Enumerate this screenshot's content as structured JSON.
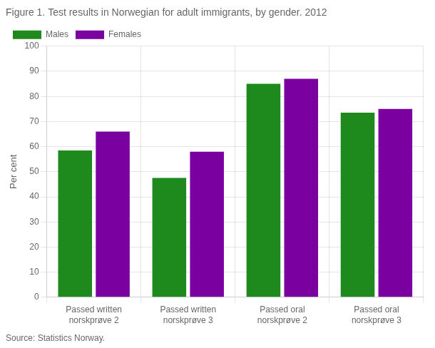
{
  "chart_data": {
    "type": "bar",
    "title": "Figure 1. Test results in Norwegian for adult immigrants, by gender. 2012",
    "y_label": "Per cent",
    "annotations": [
      "Source: Statistics Norway."
    ],
    "categories": [
      "Passed written\nnorskprøve 2",
      "Passed written\nnorskprøve 3",
      "Passed oral\nnorskprøve 2",
      "Passed oral\nnorskprøve 3"
    ],
    "series": [
      {
        "name": "Males",
        "color": "#1e8a1e",
        "values": [
          58.5,
          47.5,
          85,
          73.5
        ]
      },
      {
        "name": "Females",
        "color": "#7b00a0",
        "values": [
          66,
          58,
          87,
          75
        ]
      }
    ],
    "ylim": [
      0,
      100
    ],
    "yticks": [
      0,
      10,
      20,
      30,
      40,
      50,
      60,
      70,
      80,
      90,
      100
    ],
    "grid": true,
    "legend": "upper left"
  }
}
